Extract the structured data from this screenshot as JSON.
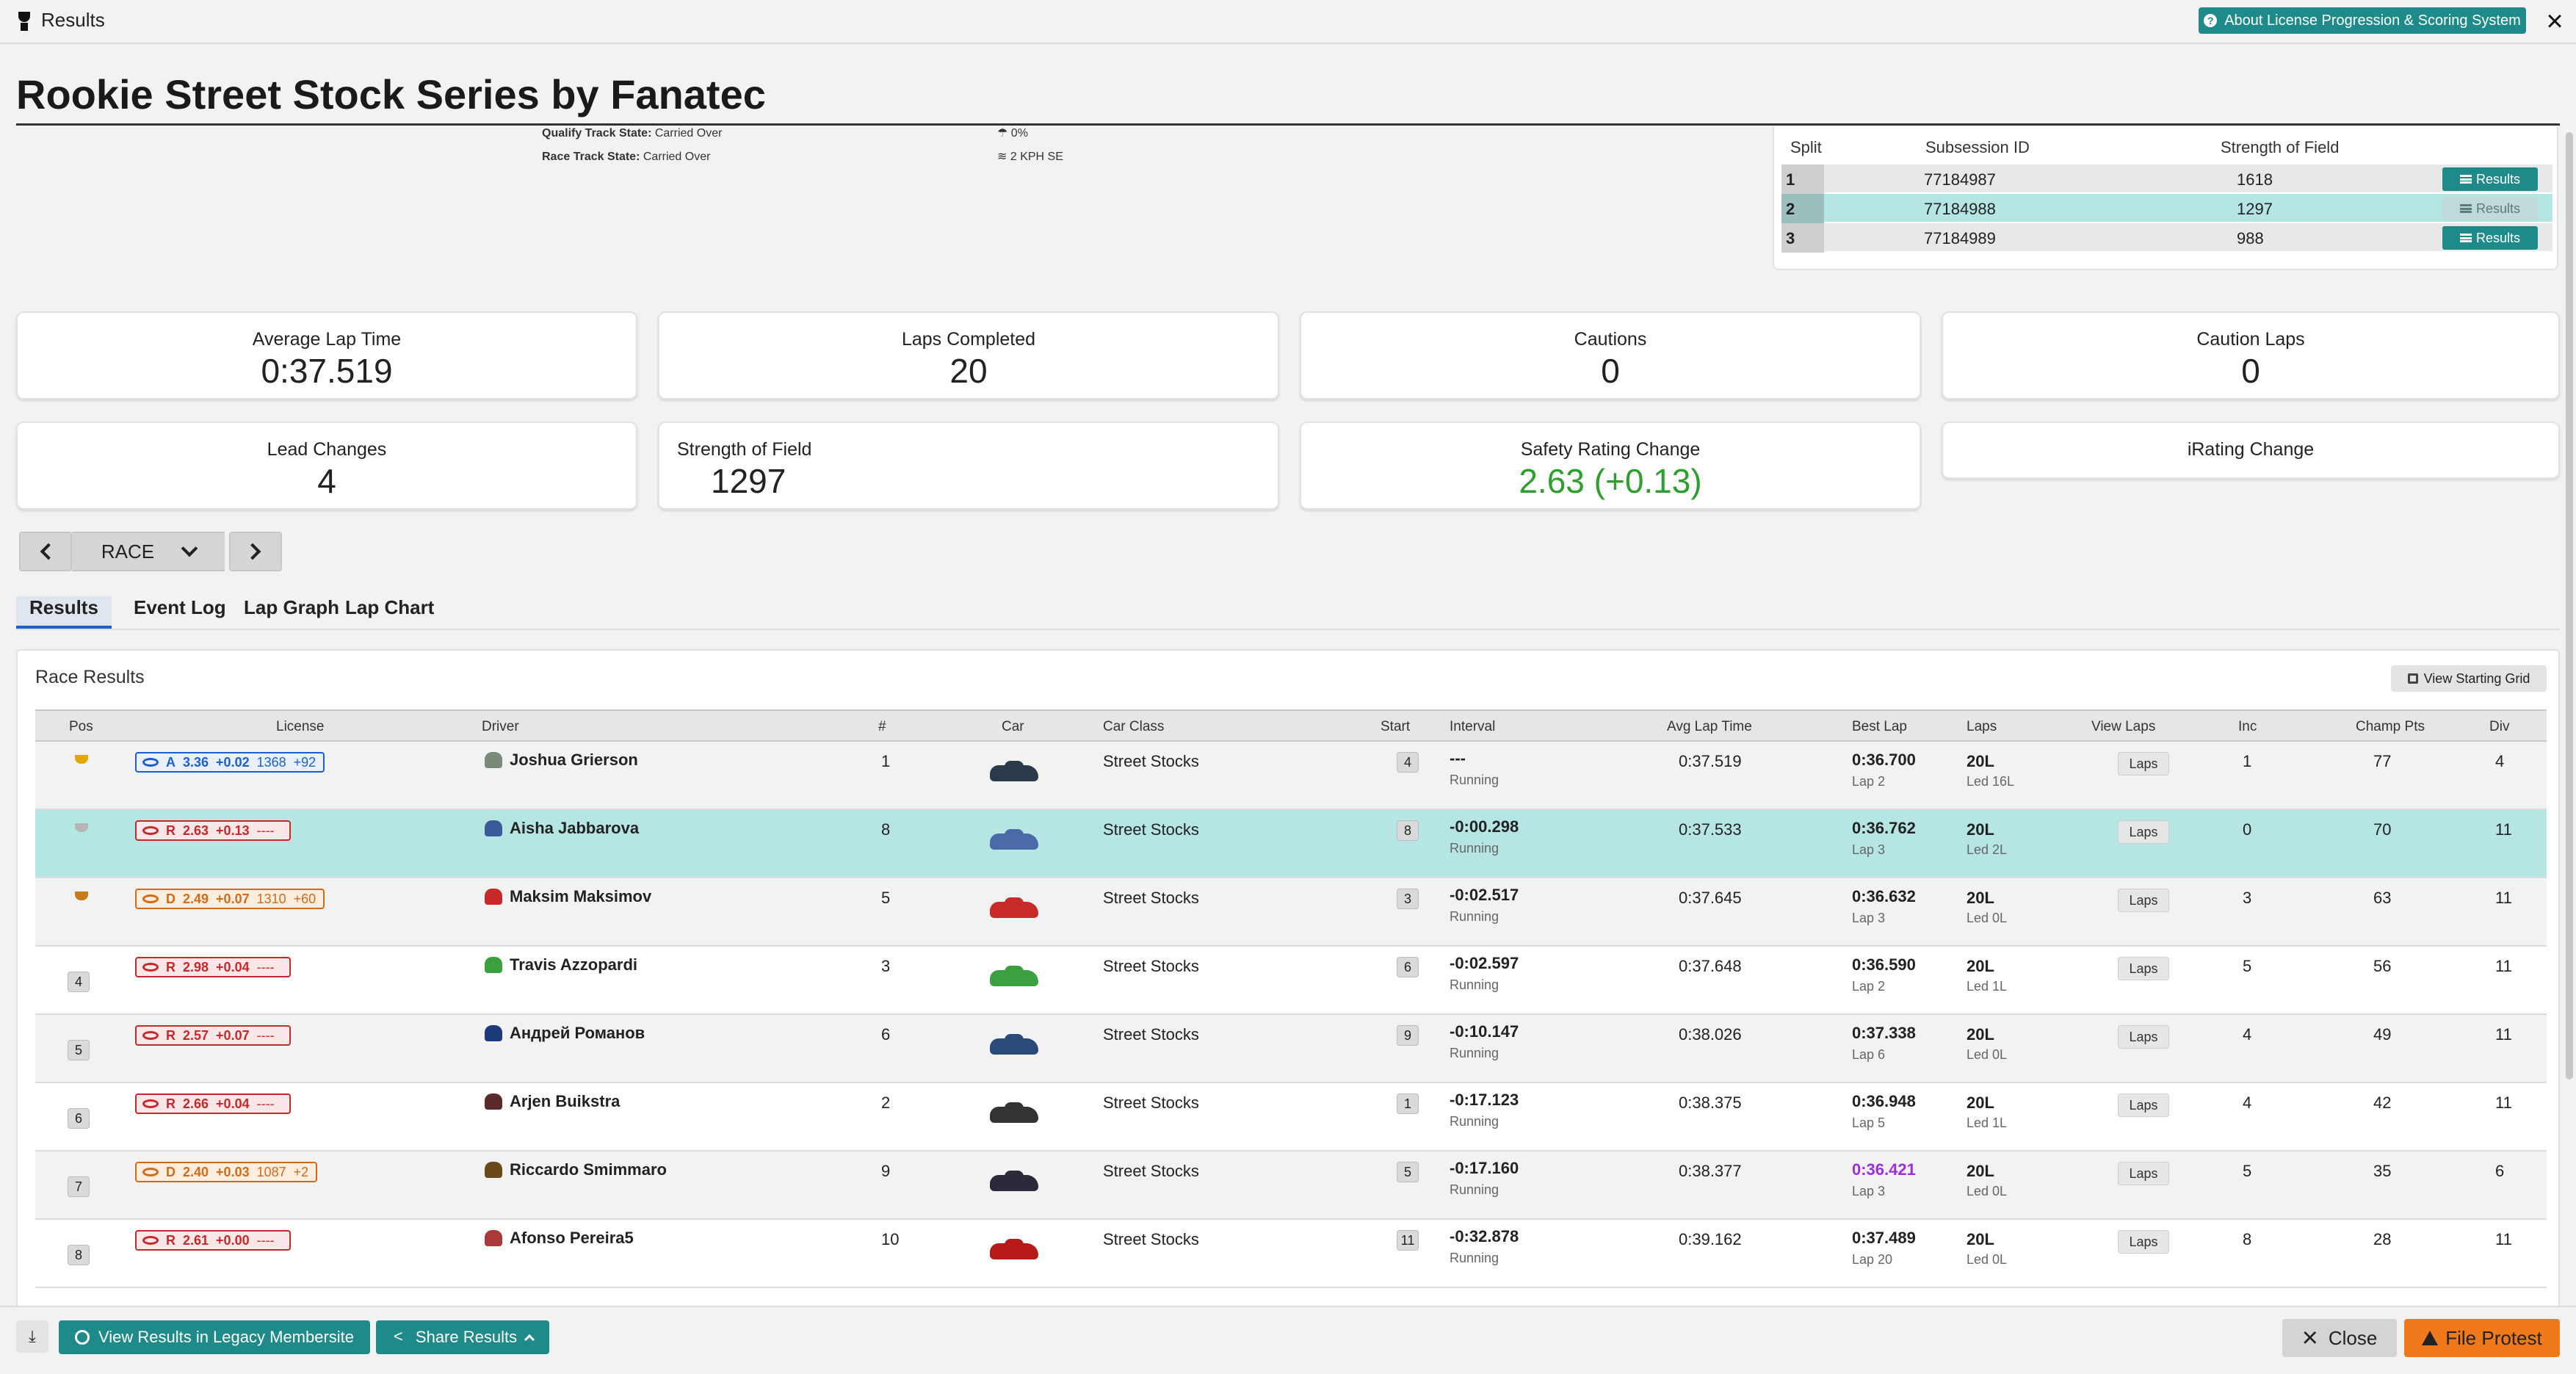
{
  "topbar": {
    "title": "Results",
    "about_label": "About License Progression & Scoring System"
  },
  "page_title": "Rookie Street Stock Series by Fanatec",
  "track": {
    "qualify_label": "Qualify Track State:",
    "qualify_value": "Carried Over",
    "race_label": "Race Track State:",
    "race_value": "Carried Over",
    "precip": "0%",
    "wind": "2 KPH SE"
  },
  "splits": {
    "headers": [
      "Split",
      "Subsession ID",
      "Strength of Field"
    ],
    "rows": [
      {
        "split": "1",
        "id": "77184987",
        "sof": "1618",
        "btn": "Results"
      },
      {
        "split": "2",
        "id": "77184988",
        "sof": "1297",
        "btn": "Results"
      },
      {
        "split": "3",
        "id": "77184989",
        "sof": "988",
        "btn": "Results"
      }
    ]
  },
  "stats": [
    {
      "label": "Average Lap Time",
      "value": "0:37.519"
    },
    {
      "label": "Laps Completed",
      "value": "20"
    },
    {
      "label": "Cautions",
      "value": "0"
    },
    {
      "label": "Caution Laps",
      "value": "0"
    },
    {
      "label": "Lead Changes",
      "value": "4"
    },
    {
      "label": "Strength of Field",
      "value": "1297"
    },
    {
      "label": "Safety Rating Change",
      "value": "2.63 (+0.13)"
    },
    {
      "label": "iRating Change",
      "value": ""
    }
  ],
  "session_select": "RACE",
  "tabs": [
    "Results",
    "Event Log",
    "Lap Graph",
    "Lap Chart"
  ],
  "panel": {
    "title": "Race Results",
    "starting_grid_label": "View Starting Grid",
    "columns": [
      "Pos",
      "License",
      "Driver",
      "#",
      "Car",
      "Car Class",
      "Start",
      "Interval",
      "Avg Lap Time",
      "Best Lap",
      "Laps",
      "View Laps",
      "Inc",
      "Champ Pts",
      "Div"
    ],
    "laps_btn": "Laps",
    "rows": [
      {
        "pos": "1",
        "lic_class": "A",
        "lic_sr": "3.36",
        "lic_sr_delta": "+0.02",
        "ir": "1368",
        "ir_delta": "+92",
        "driver": "Joshua Grierson",
        "num": "1",
        "car_class": "Street Stocks",
        "start": "4",
        "interval": "---",
        "status": "Running",
        "avg": "0:37.519",
        "best": "0:36.700",
        "best_lap": "Lap 2",
        "laps": "20L",
        "led": "Led 16L",
        "inc": "1",
        "pts": "77",
        "div": "4"
      },
      {
        "pos": "2",
        "lic_class": "R",
        "lic_sr": "2.63",
        "lic_sr_delta": "+0.13",
        "ir": "----",
        "ir_delta": "",
        "driver": "Aisha Jabbarova",
        "num": "8",
        "car_class": "Street Stocks",
        "start": "8",
        "interval": "-0:00.298",
        "status": "Running",
        "avg": "0:37.533",
        "best": "0:36.762",
        "best_lap": "Lap 3",
        "laps": "20L",
        "led": "Led 2L",
        "inc": "0",
        "pts": "70",
        "div": "11"
      },
      {
        "pos": "3",
        "lic_class": "D",
        "lic_sr": "2.49",
        "lic_sr_delta": "+0.07",
        "ir": "1310",
        "ir_delta": "+60",
        "driver": "Maksim Maksimov",
        "num": "5",
        "car_class": "Street Stocks",
        "start": "3",
        "interval": "-0:02.517",
        "status": "Running",
        "avg": "0:37.645",
        "best": "0:36.632",
        "best_lap": "Lap 3",
        "laps": "20L",
        "led": "Led 0L",
        "inc": "3",
        "pts": "63",
        "div": "11"
      },
      {
        "pos": "4",
        "lic_class": "R",
        "lic_sr": "2.98",
        "lic_sr_delta": "+0.04",
        "ir": "----",
        "ir_delta": "",
        "driver": "Travis Azzopardi",
        "num": "3",
        "car_class": "Street Stocks",
        "start": "6",
        "interval": "-0:02.597",
        "status": "Running",
        "avg": "0:37.648",
        "best": "0:36.590",
        "best_lap": "Lap 2",
        "laps": "20L",
        "led": "Led 1L",
        "inc": "5",
        "pts": "56",
        "div": "11"
      },
      {
        "pos": "5",
        "lic_class": "R",
        "lic_sr": "2.57",
        "lic_sr_delta": "+0.07",
        "ir": "----",
        "ir_delta": "",
        "driver": "Андрей Романов",
        "num": "6",
        "car_class": "Street Stocks",
        "start": "9",
        "interval": "-0:10.147",
        "status": "Running",
        "avg": "0:38.026",
        "best": "0:37.338",
        "best_lap": "Lap 6",
        "laps": "20L",
        "led": "Led 0L",
        "inc": "4",
        "pts": "49",
        "div": "11"
      },
      {
        "pos": "6",
        "lic_class": "R",
        "lic_sr": "2.66",
        "lic_sr_delta": "+0.04",
        "ir": "----",
        "ir_delta": "",
        "driver": "Arjen Buikstra",
        "num": "2",
        "car_class": "Street Stocks",
        "start": "1",
        "interval": "-0:17.123",
        "status": "Running",
        "avg": "0:38.375",
        "best": "0:36.948",
        "best_lap": "Lap 5",
        "laps": "20L",
        "led": "Led 1L",
        "inc": "4",
        "pts": "42",
        "div": "11"
      },
      {
        "pos": "7",
        "lic_class": "D",
        "lic_sr": "2.40",
        "lic_sr_delta": "+0.03",
        "ir": "1087",
        "ir_delta": "+2",
        "driver": "Riccardo Smimmaro",
        "num": "9",
        "car_class": "Street Stocks",
        "start": "5",
        "interval": "-0:17.160",
        "status": "Running",
        "avg": "0:38.377",
        "best": "0:36.421",
        "best_lap": "Lap 3",
        "laps": "20L",
        "led": "Led 0L",
        "inc": "5",
        "pts": "35",
        "div": "6"
      },
      {
        "pos": "8",
        "lic_class": "R",
        "lic_sr": "2.61",
        "lic_sr_delta": "+0.00",
        "ir": "----",
        "ir_delta": "",
        "driver": "Afonso Pereira5",
        "num": "10",
        "car_class": "Street Stocks",
        "start": "11",
        "interval": "-0:32.878",
        "status": "Running",
        "avg": "0:39.162",
        "best": "0:37.489",
        "best_lap": "Lap 20",
        "laps": "20L",
        "led": "Led 0L",
        "inc": "8",
        "pts": "28",
        "div": "11"
      }
    ]
  },
  "bottom": {
    "legacy_label": "View Results in Legacy Membersite",
    "share_label": "Share Results",
    "close_label": "Close",
    "protest_label": "File Protest"
  },
  "colors": {
    "teal": "#1f8a8a",
    "selected_row": "#b6e6e3",
    "fastest_lap": "#9b30d9",
    "sr_positive": "#2e9e2e",
    "protest": "#f07a1a"
  }
}
